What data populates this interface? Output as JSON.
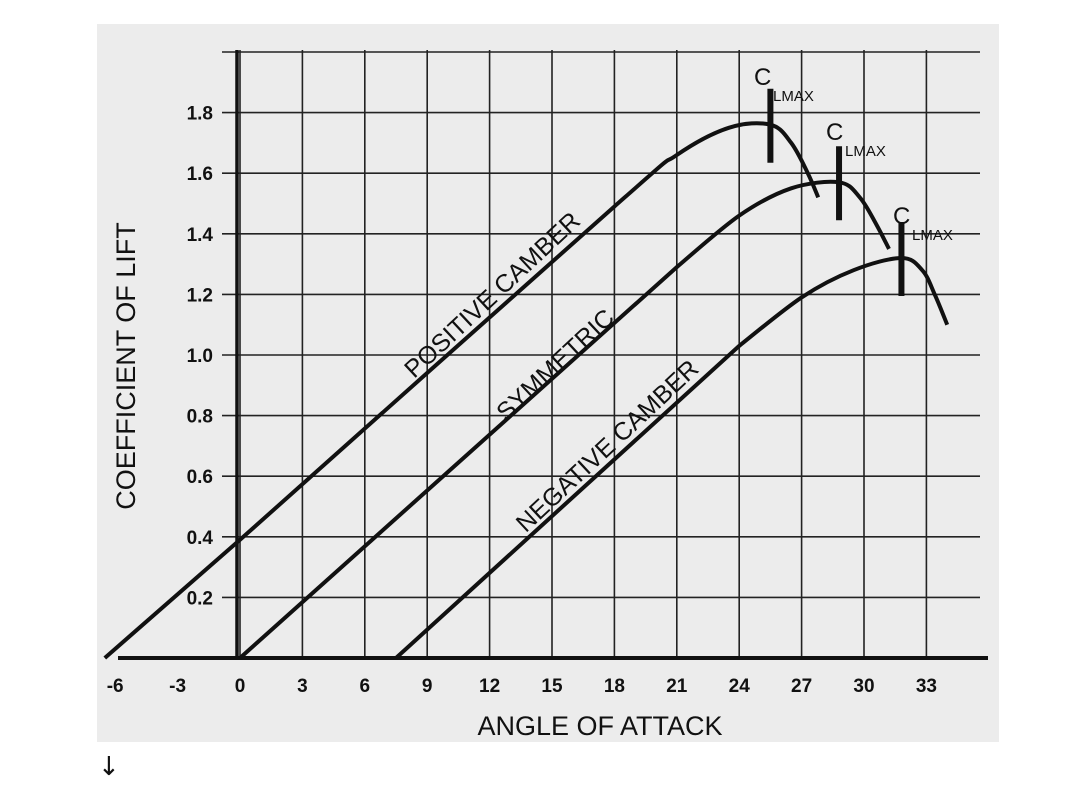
{
  "chart_data": {
    "type": "line",
    "xlabel": "ANGLE OF ATTACK",
    "ylabel": "COEFFICIENT OF LIFT",
    "xlim": [
      -6,
      34
    ],
    "ylim": [
      0,
      2.0
    ],
    "grid": true,
    "x_ticks": [
      -6,
      -3,
      0,
      3,
      6,
      9,
      12,
      15,
      18,
      21,
      24,
      27,
      30,
      33
    ],
    "x_tick_labels": [
      "-6",
      "-3",
      "0",
      "3",
      "6",
      "9",
      "12",
      "15",
      "18",
      "21",
      "24",
      "27",
      "30",
      "33"
    ],
    "y_ticks": [
      0.2,
      0.4,
      0.6,
      0.8,
      1.0,
      1.2,
      1.4,
      1.6,
      1.8
    ],
    "y_tick_labels": [
      "0.2",
      "0.4",
      "0.6",
      "0.8",
      "1.0",
      "1.2",
      "1.4",
      "1.6",
      "1.8"
    ],
    "clmax_main": "C",
    "clmax_sub": "LMAX",
    "series": [
      {
        "name": "POSITIVE CAMBER",
        "points": [
          [
            -6.5,
            0.0
          ],
          [
            0,
            0.39
          ],
          [
            18,
            1.49
          ],
          [
            21,
            1.66
          ],
          [
            23.5,
            1.75
          ],
          [
            25.5,
            1.76
          ],
          [
            26.5,
            1.7
          ],
          [
            27.3,
            1.6
          ],
          [
            27.8,
            1.52
          ]
        ],
        "clmax": {
          "x": 25.5,
          "y": 1.76
        }
      },
      {
        "name": "SYMMETRIC",
        "points": [
          [
            0,
            0.0
          ],
          [
            21,
            1.29
          ],
          [
            24,
            1.46
          ],
          [
            26.5,
            1.55
          ],
          [
            28.8,
            1.57
          ],
          [
            29.8,
            1.52
          ],
          [
            30.6,
            1.43
          ],
          [
            31.2,
            1.35
          ]
        ],
        "clmax": {
          "x": 28.8,
          "y": 1.57
        }
      },
      {
        "name": "NEGATIVE CAMBER",
        "points": [
          [
            7.5,
            0.0
          ],
          [
            24,
            1.03
          ],
          [
            27,
            1.19
          ],
          [
            29.5,
            1.28
          ],
          [
            31.8,
            1.32
          ],
          [
            32.8,
            1.28
          ],
          [
            33.4,
            1.2
          ],
          [
            34.0,
            1.1
          ]
        ],
        "clmax": {
          "x": 31.8,
          "y": 1.32
        }
      }
    ]
  },
  "footer": {
    "arrow_glyph": "↓"
  }
}
